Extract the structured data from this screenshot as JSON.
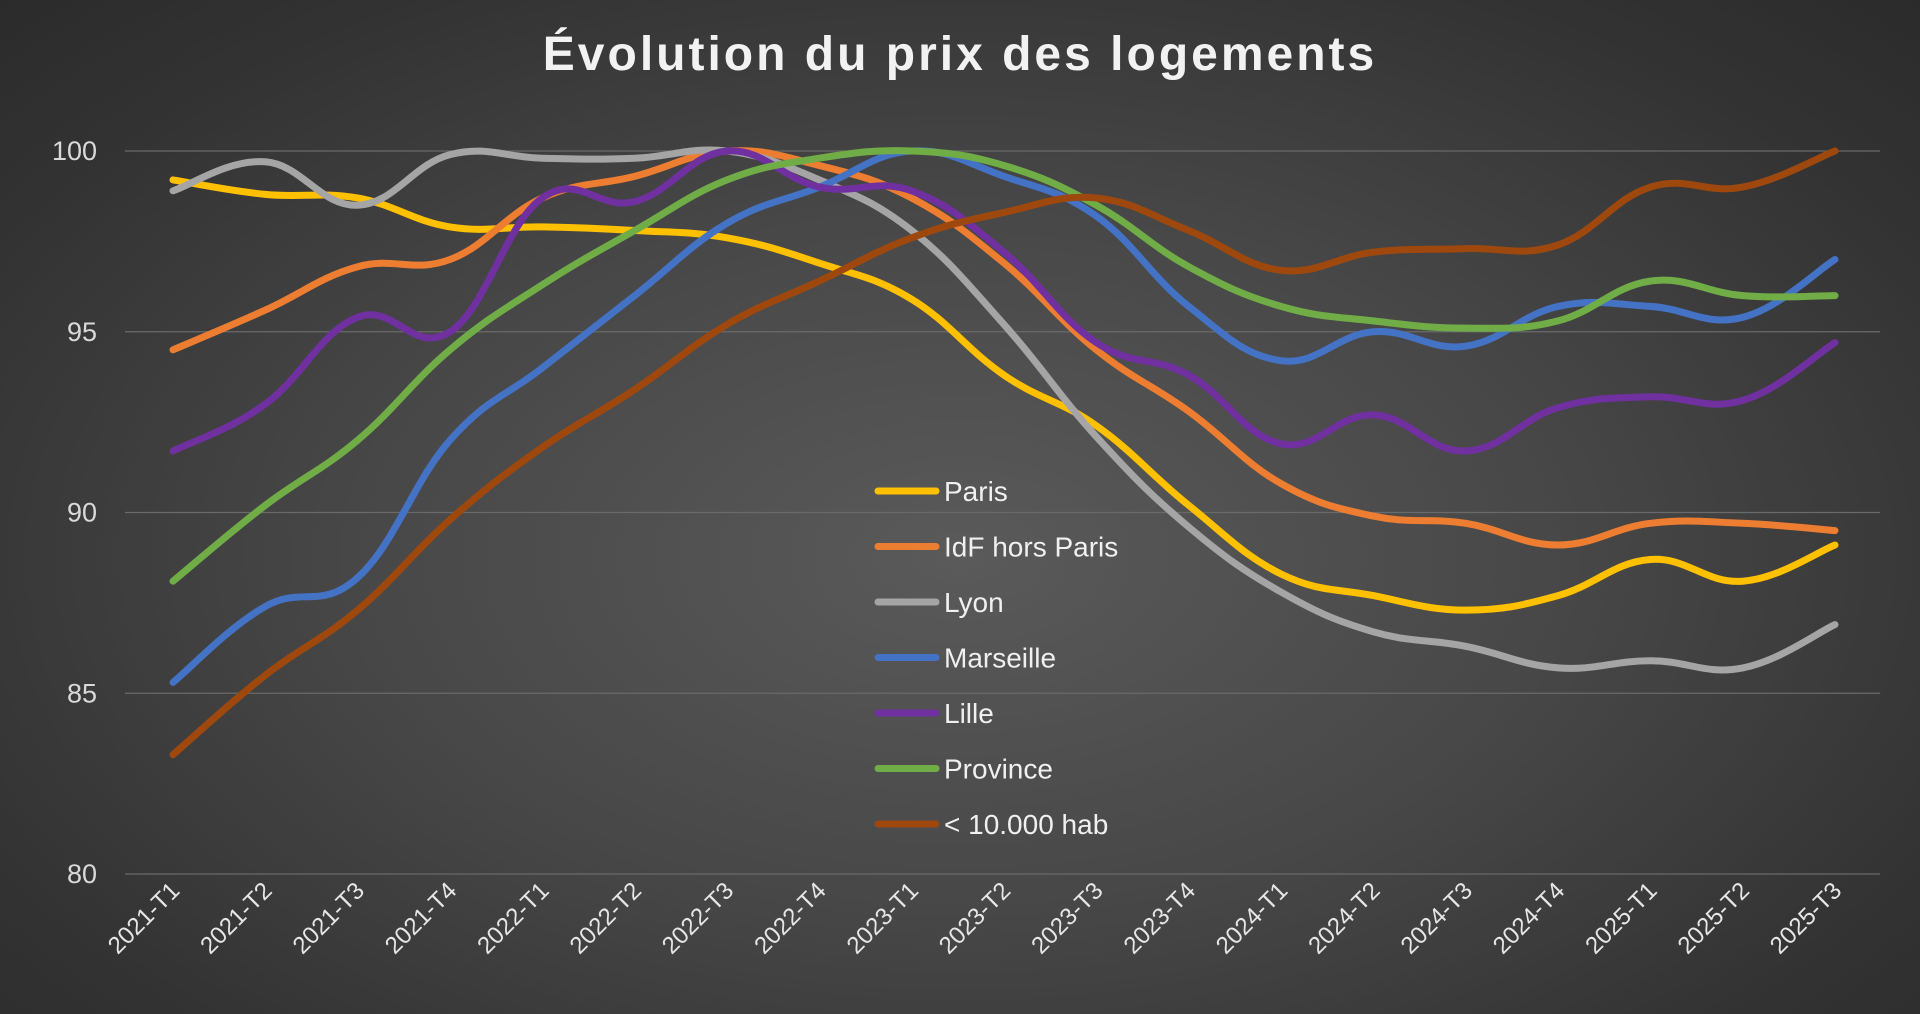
{
  "chart_data": {
    "type": "line",
    "title": "Évolution du prix des logements",
    "xlabel": "",
    "ylabel": "",
    "ylim": [
      80,
      100
    ],
    "yticks": [
      "80",
      "85",
      "90",
      "95",
      "100"
    ],
    "grid": true,
    "legend_position": "center",
    "categories": [
      "2021-T1",
      "2021-T2",
      "2021-T3",
      "2021-T4",
      "2022-T1",
      "2022-T2",
      "2022-T3",
      "2022-T4",
      "2023-T1",
      "2023-T2",
      "2023-T3",
      "2023-T4",
      "2024-T1",
      "2024-T2",
      "2024-T3",
      "2024-T4",
      "2025-T1",
      "2025-T2",
      "2025-T3"
    ],
    "series": [
      {
        "name": "Paris",
        "color": "#ffc000",
        "values": [
          99.2,
          98.8,
          98.7,
          97.9,
          97.9,
          97.8,
          97.6,
          96.9,
          95.9,
          93.8,
          92.4,
          90.2,
          88.3,
          87.7,
          87.3,
          87.7,
          88.7,
          88.1,
          89.1
        ]
      },
      {
        "name": "IdF hors Paris",
        "color": "#ed7d31",
        "values": [
          94.5,
          95.6,
          96.8,
          97.0,
          98.7,
          99.3,
          100.0,
          99.6,
          98.7,
          96.9,
          94.5,
          92.8,
          90.8,
          89.9,
          89.7,
          89.1,
          89.7,
          89.7,
          89.5
        ]
      },
      {
        "name": "Lyon",
        "color": "#a5a5a5",
        "values": [
          98.9,
          99.7,
          98.5,
          99.9,
          99.8,
          99.8,
          100.0,
          99.2,
          97.8,
          95.2,
          92.1,
          89.6,
          87.8,
          86.7,
          86.3,
          85.7,
          85.9,
          85.7,
          86.9
        ]
      },
      {
        "name": "Marseille",
        "color": "#4472c4",
        "values": [
          85.3,
          87.4,
          88.2,
          92.0,
          94.0,
          96.0,
          98.0,
          99.0,
          100.0,
          99.3,
          98.2,
          95.7,
          94.2,
          95.0,
          94.6,
          95.7,
          95.7,
          95.4,
          97.0
        ]
      },
      {
        "name": "Lille",
        "color": "#7030a0",
        "values": [
          91.7,
          93.0,
          95.4,
          95.0,
          98.7,
          98.6,
          100.0,
          99.0,
          98.9,
          97.2,
          94.7,
          93.8,
          91.9,
          92.7,
          91.7,
          92.9,
          93.2,
          93.1,
          94.7
        ]
      },
      {
        "name": "Province",
        "color": "#70ad47",
        "values": [
          88.1,
          90.2,
          92.0,
          94.5,
          96.3,
          97.8,
          99.2,
          99.8,
          100.0,
          99.6,
          98.5,
          96.8,
          95.7,
          95.3,
          95.1,
          95.3,
          96.4,
          96.0,
          96.0
        ]
      },
      {
        "name": "< 10.000 hab",
        "color": "#9e480e",
        "values": [
          83.3,
          85.5,
          87.3,
          89.8,
          91.8,
          93.4,
          95.2,
          96.4,
          97.6,
          98.3,
          98.7,
          97.8,
          96.7,
          97.2,
          97.3,
          97.4,
          99.0,
          99.0,
          100.0
        ]
      }
    ]
  }
}
